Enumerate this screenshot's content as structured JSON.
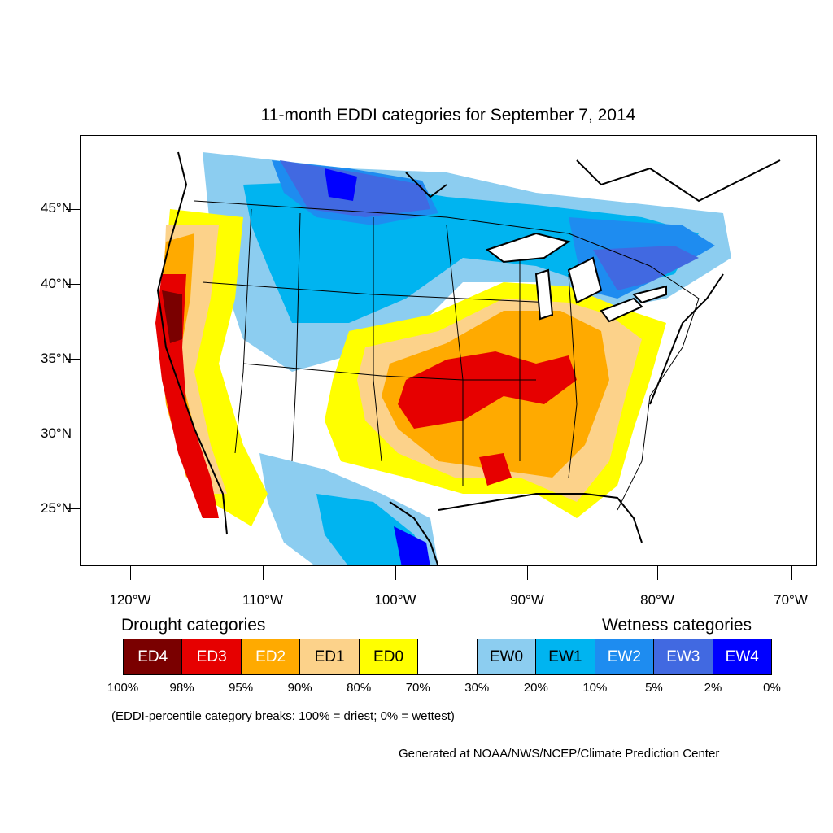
{
  "title": "11-month EDDI categories for September 7, 2014",
  "lat_labels": [
    "45°N",
    "40°N",
    "35°N",
    "30°N",
    "25°N"
  ],
  "lon_labels": [
    "120°W",
    "110°W",
    "100°W",
    "90°W",
    "80°W",
    "70°W"
  ],
  "legend": {
    "drought_heading": "Drought categories",
    "wetness_heading": "Wetness categories",
    "categories": [
      {
        "label": "ED4",
        "color": "#7a0000",
        "text_color": "#ffffff"
      },
      {
        "label": "ED3",
        "color": "#e60000",
        "text_color": "#ffffff"
      },
      {
        "label": "ED2",
        "color": "#ffaa00",
        "text_color": "#ffffff"
      },
      {
        "label": "ED1",
        "color": "#fcd28a",
        "text_color": "#000000"
      },
      {
        "label": "ED0",
        "color": "#ffff00",
        "text_color": "#000000"
      },
      {
        "label": "",
        "color": "#ffffff",
        "text_color": "#000000"
      },
      {
        "label": "EW0",
        "color": "#8ccdf0",
        "text_color": "#000000"
      },
      {
        "label": "EW1",
        "color": "#00b4f0",
        "text_color": "#000000"
      },
      {
        "label": "EW2",
        "color": "#1e8cf0",
        "text_color": "#ffffff"
      },
      {
        "label": "EW3",
        "color": "#4169e1",
        "text_color": "#ffffff"
      },
      {
        "label": "EW4",
        "color": "#0000ff",
        "text_color": "#ffffff"
      }
    ],
    "breaks": [
      "100%",
      "98%",
      "95%",
      "90%",
      "80%",
      "70%",
      "30%",
      "20%",
      "10%",
      "5%",
      "2%",
      "0%"
    ]
  },
  "note": "(EDDI-percentile category breaks: 100% = driest; 0% = wettest)",
  "credit": "Generated at NOAA/NWS/NCEP/Climate Prediction Center"
}
